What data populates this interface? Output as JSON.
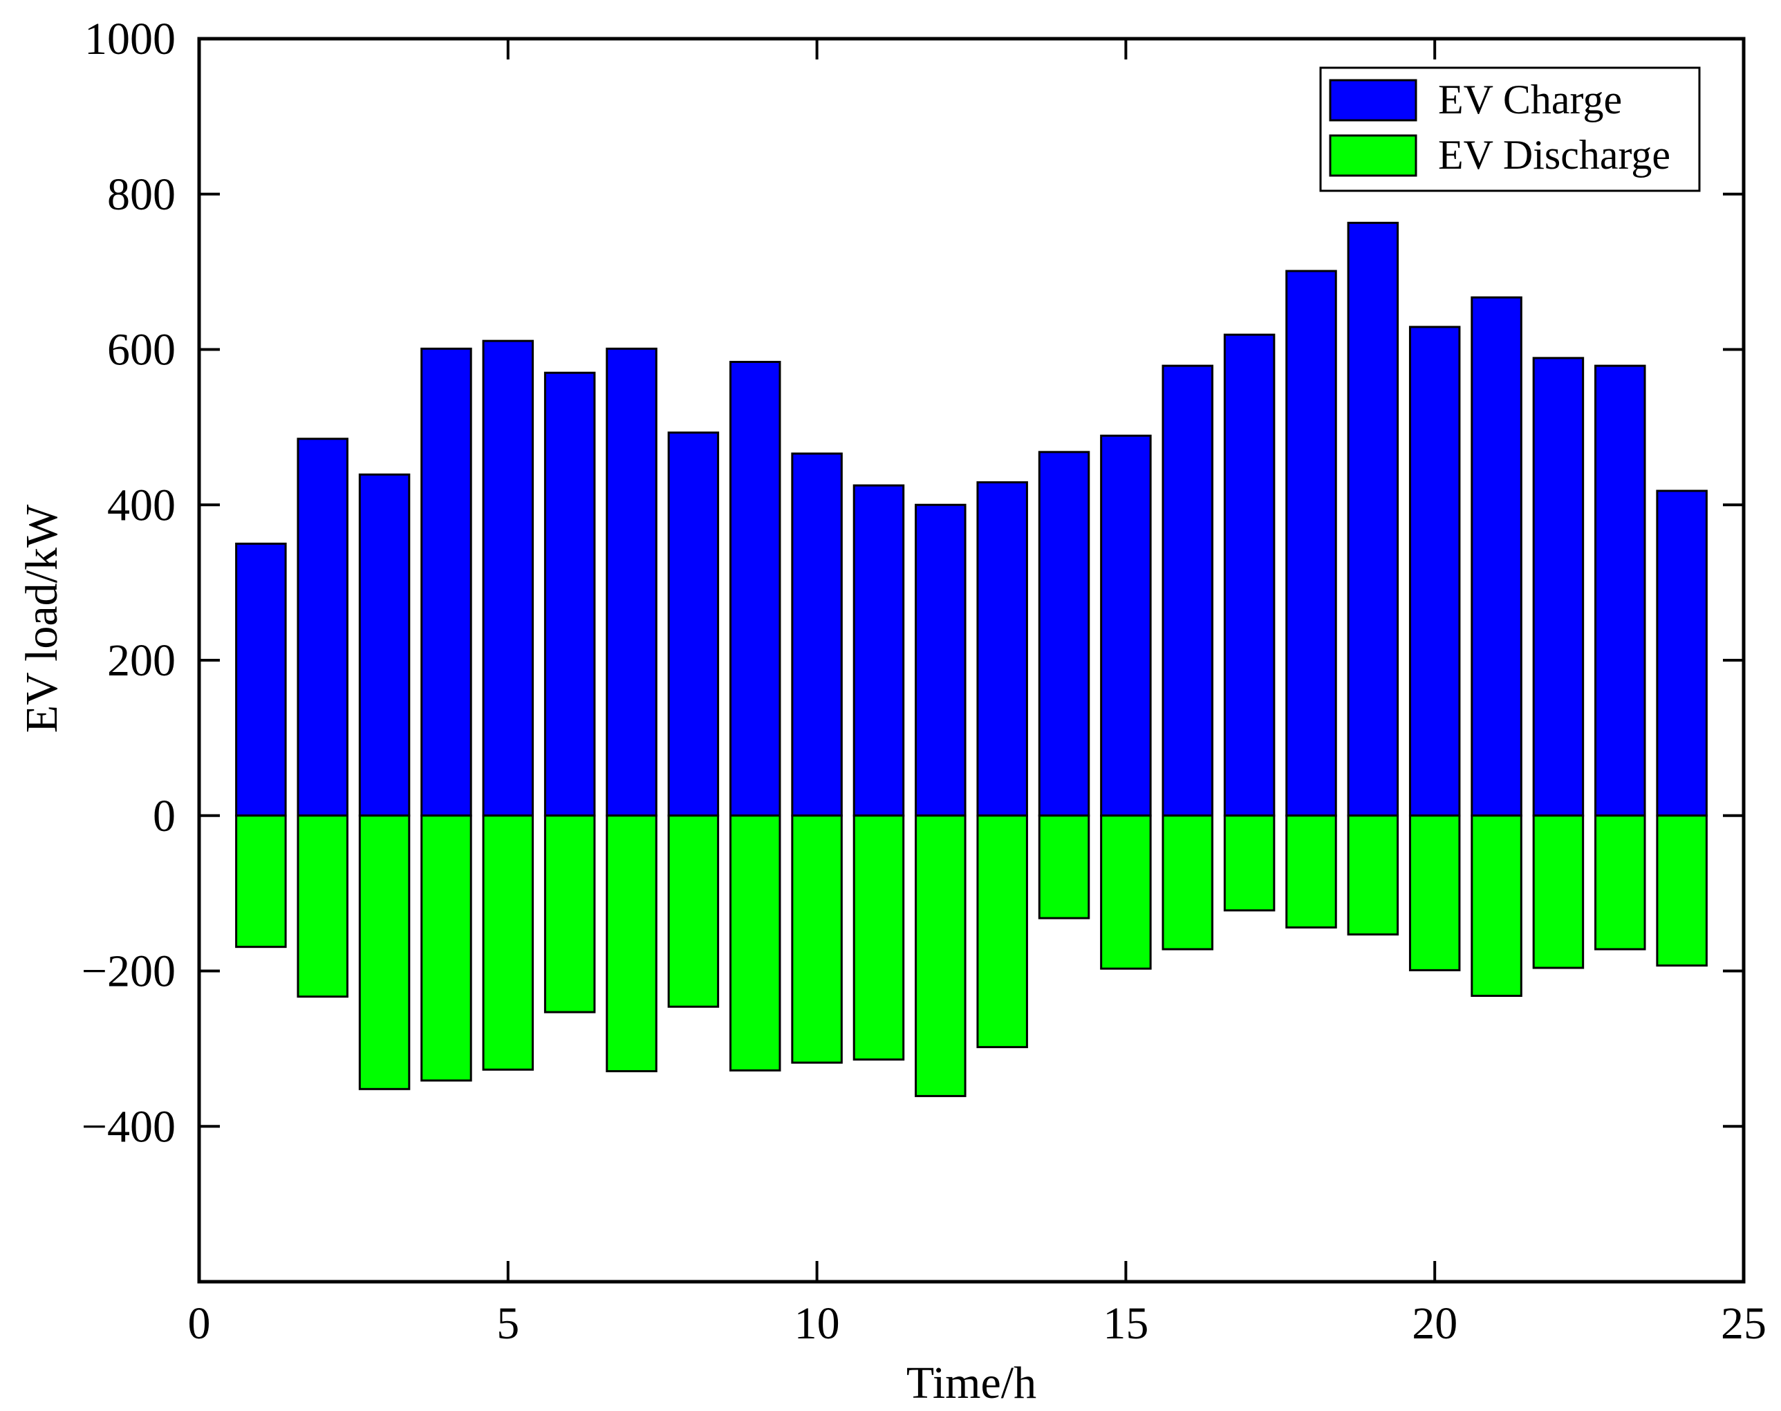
{
  "chart_data": {
    "type": "bar",
    "title": "",
    "xlabel": "Time/h",
    "ylabel": "EV load/kW",
    "xlim": [
      0,
      25
    ],
    "ylim": [
      -600,
      1000
    ],
    "xticks": [
      0,
      5,
      10,
      15,
      20,
      25
    ],
    "yticks": [
      -400,
      -200,
      0,
      200,
      400,
      600,
      800,
      1000
    ],
    "ytick_labels": [
      "−400",
      "−200",
      "0",
      "200",
      "400",
      "600",
      "800",
      "1000"
    ],
    "grid": false,
    "legend_position": "top-right",
    "categories": [
      1,
      2,
      3,
      4,
      5,
      6,
      7,
      8,
      9,
      10,
      11,
      12,
      13,
      14,
      15,
      16,
      17,
      18,
      19,
      20,
      21,
      22,
      23,
      24
    ],
    "series": [
      {
        "name": "EV Charge",
        "color": "#0000ff",
        "values": [
          350,
          485,
          439,
          601,
          611,
          570,
          601,
          493,
          584,
          466,
          425,
          400,
          429,
          468,
          489,
          579,
          619,
          701,
          763,
          629,
          667,
          589,
          579,
          418
        ]
      },
      {
        "name": "EV Discharge",
        "color": "#00ff00",
        "values": [
          -169,
          -233,
          -352,
          -341,
          -327,
          -253,
          -329,
          -246,
          -328,
          -318,
          -314,
          -361,
          -298,
          -132,
          -197,
          -172,
          -122,
          -144,
          -153,
          -199,
          -232,
          -196,
          -172,
          -193
        ]
      }
    ]
  }
}
